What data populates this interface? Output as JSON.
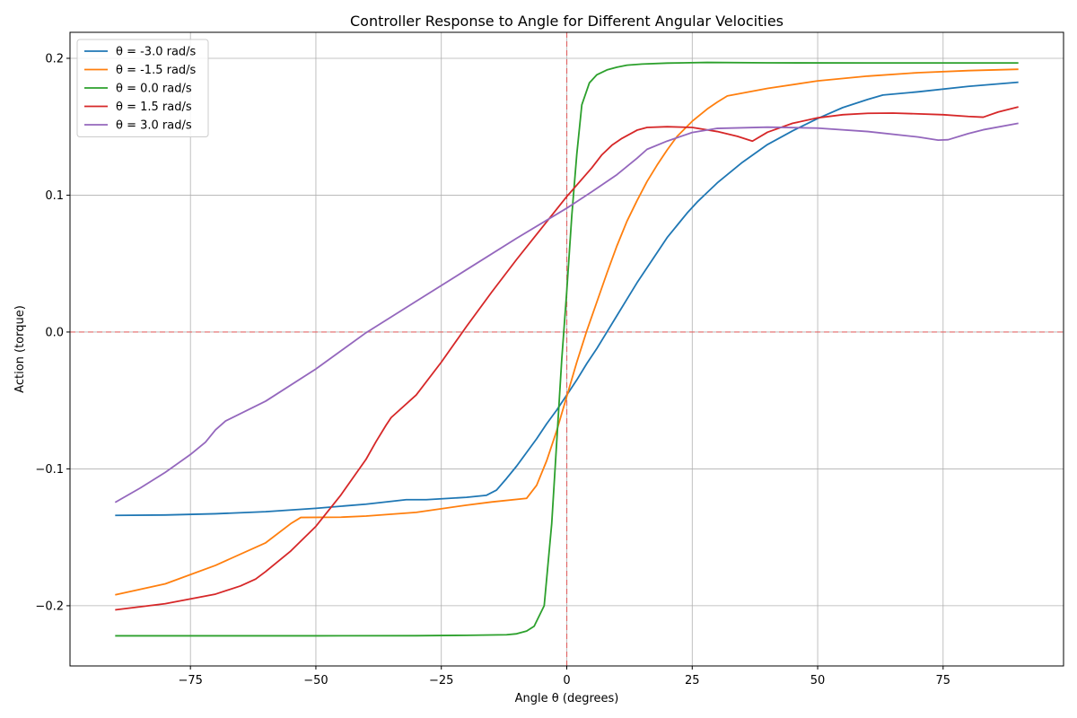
{
  "chart_data": {
    "type": "line",
    "title": "Controller Response to Angle for Different Angular Velocities",
    "xlabel": "Angle θ (degrees)",
    "ylabel": "Action (torque)",
    "xlim": [
      -99,
      99
    ],
    "ylim": [
      -0.244,
      0.219
    ],
    "x_ticks": [
      -75,
      -50,
      -25,
      0,
      25,
      50,
      75
    ],
    "x_tick_labels": [
      "−75",
      "−50",
      "−25",
      "0",
      "25",
      "50",
      "75"
    ],
    "y_ticks": [
      -0.2,
      -0.1,
      0.0,
      0.1,
      0.2
    ],
    "y_tick_labels": [
      "−0.2",
      "−0.1",
      "0.0",
      "0.1",
      "0.2"
    ],
    "grid": true,
    "legend_position": "top-left",
    "reference_lines": {
      "x": 0,
      "y": 0,
      "color": "#e06666"
    },
    "series": [
      {
        "name": "θ = -3.0 rad/s",
        "color": "#1f77b4",
        "points": [
          [
            -90,
            -0.134
          ],
          [
            -80,
            -0.1337
          ],
          [
            -70,
            -0.1328
          ],
          [
            -60,
            -0.1313
          ],
          [
            -50,
            -0.1288
          ],
          [
            -40,
            -0.1258
          ],
          [
            -32,
            -0.1225
          ],
          [
            -28,
            -0.1225
          ],
          [
            -20,
            -0.1208
          ],
          [
            -16,
            -0.1193
          ],
          [
            -14,
            -0.1155
          ],
          [
            -12,
            -0.107
          ],
          [
            -10,
            -0.098
          ],
          [
            -8,
            -0.088
          ],
          [
            -6,
            -0.078
          ],
          [
            -4,
            -0.067
          ],
          [
            -2,
            -0.057
          ],
          [
            0,
            -0.046
          ],
          [
            2,
            -0.035
          ],
          [
            4,
            -0.023
          ],
          [
            6,
            -0.012
          ],
          [
            8,
            0.0
          ],
          [
            10,
            0.012
          ],
          [
            12,
            0.024
          ],
          [
            14,
            0.036
          ],
          [
            16,
            0.047
          ],
          [
            18,
            0.058
          ],
          [
            20,
            0.069
          ],
          [
            22,
            0.078
          ],
          [
            24,
            0.087
          ],
          [
            26,
            0.095
          ],
          [
            28,
            0.102
          ],
          [
            30,
            0.109
          ],
          [
            35,
            0.124
          ],
          [
            40,
            0.137
          ],
          [
            45,
            0.147
          ],
          [
            50,
            0.156
          ],
          [
            55,
            0.164
          ],
          [
            60,
            0.17
          ],
          [
            63,
            0.1732
          ],
          [
            70,
            0.1755
          ],
          [
            80,
            0.1795
          ],
          [
            90,
            0.1825
          ]
        ]
      },
      {
        "name": "θ = -1.5 rad/s",
        "color": "#ff7f0e",
        "points": [
          [
            -90,
            -0.192
          ],
          [
            -80,
            -0.184
          ],
          [
            -70,
            -0.1705
          ],
          [
            -60,
            -0.154
          ],
          [
            -55,
            -0.14
          ],
          [
            -53,
            -0.1355
          ],
          [
            -45,
            -0.1353
          ],
          [
            -40,
            -0.1345
          ],
          [
            -30,
            -0.1318
          ],
          [
            -20,
            -0.1265
          ],
          [
            -15,
            -0.1242
          ],
          [
            -8,
            -0.1215
          ],
          [
            -6,
            -0.112
          ],
          [
            -4,
            -0.094
          ],
          [
            -2,
            -0.072
          ],
          [
            0,
            -0.047
          ],
          [
            2,
            -0.022
          ],
          [
            4,
            0.001
          ],
          [
            6,
            0.022
          ],
          [
            8,
            0.043
          ],
          [
            10,
            0.063
          ],
          [
            12,
            0.081
          ],
          [
            14,
            0.096
          ],
          [
            16,
            0.11
          ],
          [
            18,
            0.122
          ],
          [
            20,
            0.133
          ],
          [
            22,
            0.143
          ],
          [
            25,
            0.154
          ],
          [
            28,
            0.163
          ],
          [
            30,
            0.168
          ],
          [
            32,
            0.1725
          ],
          [
            40,
            0.178
          ],
          [
            50,
            0.1835
          ],
          [
            60,
            0.187
          ],
          [
            70,
            0.1895
          ],
          [
            80,
            0.191
          ],
          [
            90,
            0.192
          ]
        ]
      },
      {
        "name": "θ = 0.0 rad/s",
        "color": "#2ca02c",
        "points": [
          [
            -90,
            -0.222
          ],
          [
            -50,
            -0.222
          ],
          [
            -30,
            -0.2219
          ],
          [
            -20,
            -0.2216
          ],
          [
            -12,
            -0.2212
          ],
          [
            -10,
            -0.2205
          ],
          [
            -8,
            -0.2185
          ],
          [
            -6.5,
            -0.215
          ],
          [
            -4.5,
            -0.2
          ],
          [
            -3,
            -0.14
          ],
          [
            -2,
            -0.08
          ],
          [
            -1,
            -0.02
          ],
          [
            0,
            0.03
          ],
          [
            1,
            0.085
          ],
          [
            2,
            0.13
          ],
          [
            3,
            0.166
          ],
          [
            4.5,
            0.182
          ],
          [
            6,
            0.188
          ],
          [
            8,
            0.1915
          ],
          [
            10,
            0.1935
          ],
          [
            12,
            0.195
          ],
          [
            15,
            0.1958
          ],
          [
            20,
            0.1965
          ],
          [
            28,
            0.197
          ],
          [
            40,
            0.1967
          ],
          [
            60,
            0.1966
          ],
          [
            90,
            0.1966
          ]
        ]
      },
      {
        "name": "θ = 1.5 rad/s",
        "color": "#d62728",
        "points": [
          [
            -90,
            -0.203
          ],
          [
            -80,
            -0.1985
          ],
          [
            -70,
            -0.1915
          ],
          [
            -65,
            -0.1855
          ],
          [
            -62,
            -0.1805
          ],
          [
            -60,
            -0.175
          ],
          [
            -55,
            -0.16
          ],
          [
            -50,
            -0.142
          ],
          [
            -45,
            -0.119
          ],
          [
            -40,
            -0.093
          ],
          [
            -38,
            -0.08
          ],
          [
            -36,
            -0.068
          ],
          [
            -35,
            -0.0625
          ],
          [
            -30,
            -0.046
          ],
          [
            -25,
            -0.022
          ],
          [
            -20,
            0.004
          ],
          [
            -15,
            0.029
          ],
          [
            -10,
            0.053
          ],
          [
            -5,
            0.076
          ],
          [
            0,
            0.099
          ],
          [
            5,
            0.12
          ],
          [
            7,
            0.1295
          ],
          [
            9,
            0.1365
          ],
          [
            11,
            0.1415
          ],
          [
            14,
            0.1475
          ],
          [
            16,
            0.1495
          ],
          [
            20,
            0.15
          ],
          [
            25,
            0.1495
          ],
          [
            30,
            0.1465
          ],
          [
            34,
            0.143
          ],
          [
            37,
            0.1395
          ],
          [
            40,
            0.146
          ],
          [
            45,
            0.1525
          ],
          [
            50,
            0.1565
          ],
          [
            55,
            0.1588
          ],
          [
            60,
            0.1598
          ],
          [
            65,
            0.16
          ],
          [
            75,
            0.1588
          ],
          [
            80,
            0.1575
          ],
          [
            83,
            0.157
          ],
          [
            86,
            0.1608
          ],
          [
            90,
            0.1645
          ]
        ]
      },
      {
        "name": "θ = 3.0 rad/s",
        "color": "#9467bd",
        "points": [
          [
            -90,
            -0.1245
          ],
          [
            -85,
            -0.114
          ],
          [
            -80,
            -0.1025
          ],
          [
            -75,
            -0.0895
          ],
          [
            -72,
            -0.0805
          ],
          [
            -70,
            -0.0715
          ],
          [
            -68,
            -0.065
          ],
          [
            -60,
            -0.0505
          ],
          [
            -50,
            -0.027
          ],
          [
            -40,
            -0.0005
          ],
          [
            -30,
            0.0225
          ],
          [
            -20,
            0.0455
          ],
          [
            -10,
            0.0685
          ],
          [
            0,
            0.0905
          ],
          [
            5,
            0.1025
          ],
          [
            10,
            0.115
          ],
          [
            14,
            0.127
          ],
          [
            16,
            0.1335
          ],
          [
            20,
            0.1395
          ],
          [
            25,
            0.1458
          ],
          [
            30,
            0.1488
          ],
          [
            40,
            0.1497
          ],
          [
            50,
            0.149
          ],
          [
            60,
            0.1465
          ],
          [
            70,
            0.1425
          ],
          [
            74,
            0.1402
          ],
          [
            76,
            0.1405
          ],
          [
            80,
            0.145
          ],
          [
            83,
            0.1478
          ],
          [
            90,
            0.1525
          ]
        ]
      }
    ]
  }
}
